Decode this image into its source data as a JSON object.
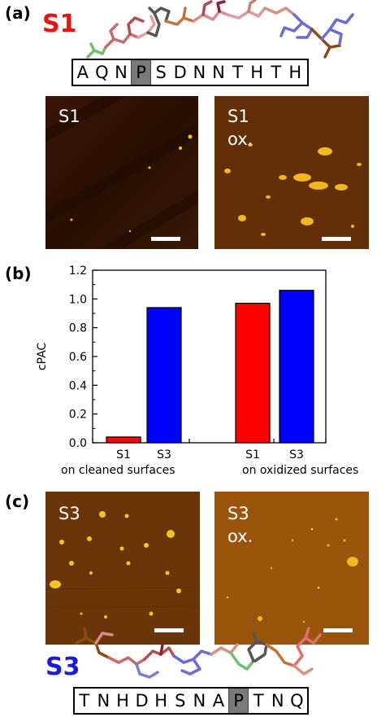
{
  "panels": {
    "a": "(a)",
    "b": "(b)",
    "c": "(c)"
  },
  "peptide_s1": {
    "name": "S1",
    "name_color": "#ee1111",
    "sequence": [
      "A",
      "Q",
      "N",
      "P",
      "S",
      "D",
      "N",
      "N",
      "T",
      "H",
      "T",
      "H"
    ],
    "highlight_index": 3
  },
  "peptide_s3": {
    "name": "S3",
    "name_color": "#1a1adf",
    "sequence": [
      "T",
      "N",
      "H",
      "D",
      "H",
      "S",
      "N",
      "A",
      "P",
      "T",
      "N",
      "Q"
    ],
    "highlight_index": 8
  },
  "afm_images": {
    "s1": {
      "line1": "S1",
      "line2": ""
    },
    "s1_ox": {
      "line1": "S1",
      "line2": "ox."
    },
    "s3": {
      "line1": "S3",
      "line2": ""
    },
    "s3_ox": {
      "line1": "S3",
      "line2": "ox."
    }
  },
  "chart_data": {
    "type": "bar",
    "ylabel": "cPAC",
    "ylim": [
      0.0,
      1.2
    ],
    "yticks": [
      "0.0",
      "0.2",
      "0.4",
      "0.6",
      "0.8",
      "1.0",
      "1.2"
    ],
    "groups": [
      {
        "label": "on cleaned surfaces",
        "bars": [
          {
            "category": "S1",
            "value": 0.04,
            "color": "#ff0000"
          },
          {
            "category": "S3",
            "value": 0.94,
            "color": "#0000ff"
          }
        ]
      },
      {
        "label": "on oxidized surfaces",
        "bars": [
          {
            "category": "S1",
            "value": 0.97,
            "color": "#ff0000"
          },
          {
            "category": "S3",
            "value": 1.06,
            "color": "#0000ff"
          }
        ]
      }
    ],
    "grid": false
  },
  "colors": {
    "afm_dark": "#2a0f02",
    "afm_mid": "#7a3d08",
    "afm_particle": "#f3c21a",
    "bar_s1": "#ff0000",
    "bar_s3": "#0000ff"
  }
}
